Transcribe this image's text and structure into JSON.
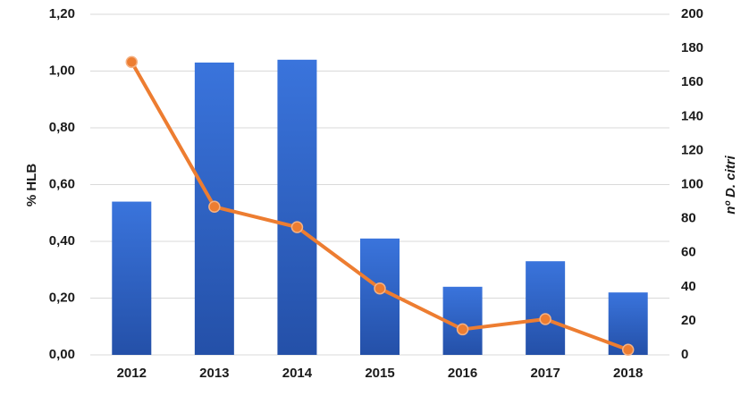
{
  "chart_data": {
    "type": "bar_line",
    "categories": [
      "2012",
      "2013",
      "2014",
      "2015",
      "2016",
      "2017",
      "2018"
    ],
    "ylabel": "% HLB",
    "y2label": "nº D. citri",
    "ylim": [
      0,
      1.2
    ],
    "yticks": [
      {
        "value": 0,
        "label": "0,00"
      },
      {
        "value": 0.2,
        "label": "0,20"
      },
      {
        "value": 0.4,
        "label": "0,40"
      },
      {
        "value": 0.6,
        "label": "0,60"
      },
      {
        "value": 0.8,
        "label": "0,80"
      },
      {
        "value": 1.0,
        "label": "1,00"
      },
      {
        "value": 1.2,
        "label": "1,20"
      }
    ],
    "y2lim": [
      0,
      200
    ],
    "y2ticks": [
      0,
      20,
      40,
      60,
      80,
      100,
      120,
      140,
      160,
      180,
      200
    ],
    "grid": true,
    "series": [
      {
        "name": "% HLB",
        "type": "bar",
        "color": "#3066cf",
        "values": [
          0.54,
          1.03,
          1.04,
          0.41,
          0.24,
          0.33,
          0.22
        ]
      },
      {
        "name": "nº D. citri",
        "type": "line",
        "axis": "y2",
        "color": "#ed7d31",
        "values": [
          172,
          87,
          75,
          39,
          15,
          21,
          3
        ]
      }
    ]
  }
}
